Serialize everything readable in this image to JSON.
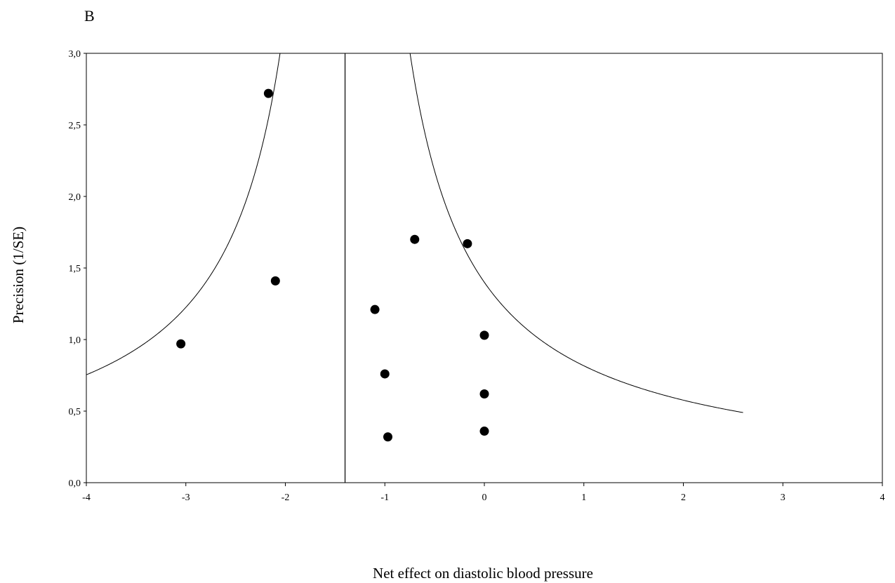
{
  "chart_data": {
    "type": "scatter",
    "panel_label": "B",
    "title": "",
    "xlabel": "Net effect on diastolic blood pressure",
    "ylabel": "Precision (1/SE)",
    "xlim": [
      -4,
      4
    ],
    "ylim": [
      0,
      3
    ],
    "x_ticks": [
      -4,
      -3,
      -2,
      -1,
      0,
      1,
      2,
      3,
      4
    ],
    "x_tick_labels": [
      "-4",
      "-3",
      "-2",
      "-1",
      "0",
      "1",
      "2",
      "3",
      "4"
    ],
    "y_ticks": [
      0,
      0.5,
      1,
      1.5,
      2,
      2.5,
      3
    ],
    "y_tick_labels": [
      "0,0",
      "0,5",
      "1,0",
      "1,5",
      "2,0",
      "2,5",
      "3,0"
    ],
    "grid": false,
    "legend": "none",
    "pooled_estimate": -1.4,
    "funnel_constant": 1.96,
    "funnel_left_min_x": -4,
    "funnel_right_max_x": 2.6,
    "points": [
      {
        "x": -2.17,
        "y": 2.72
      },
      {
        "x": -2.1,
        "y": 1.41
      },
      {
        "x": -3.05,
        "y": 0.97
      },
      {
        "x": -0.7,
        "y": 1.7
      },
      {
        "x": -0.17,
        "y": 1.67
      },
      {
        "x": -1.1,
        "y": 1.21
      },
      {
        "x": 0.0,
        "y": 1.03
      },
      {
        "x": -1.0,
        "y": 0.76
      },
      {
        "x": 0.0,
        "y": 0.62
      },
      {
        "x": -0.97,
        "y": 0.32
      },
      {
        "x": 0.0,
        "y": 0.36
      }
    ]
  }
}
